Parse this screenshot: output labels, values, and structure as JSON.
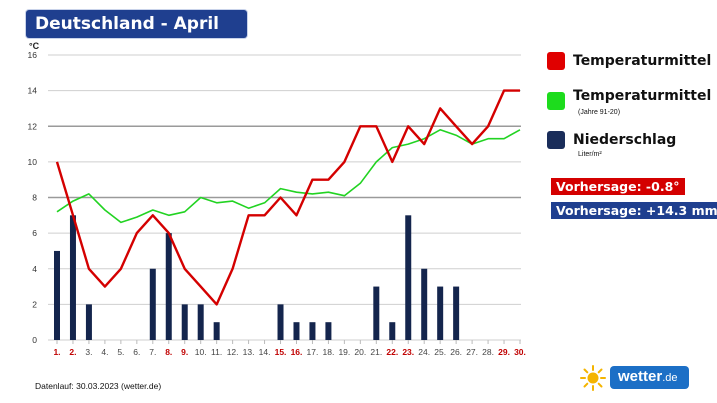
{
  "title": "Deutschland - April",
  "unit_label": "°C",
  "legend": [
    {
      "label": "Temperaturmittel",
      "sub": "",
      "color": "#e00000"
    },
    {
      "label": "Temperaturmittel",
      "sub": "(Jahre 91-20)",
      "color": "#1ddc1d"
    },
    {
      "label": "Niederschlag",
      "sub": "Liter/m²",
      "color": "#1a2d5a"
    }
  ],
  "forecast": {
    "temp": {
      "text": "Vorhersage: -0.8°",
      "color": "#d40000"
    },
    "precip": {
      "text": "Vorhersage: +14.3 mm",
      "color": "#1f3f8f"
    }
  },
  "footer": "Datenlauf: 30.03.2023 (wetter.de)",
  "logo": {
    "name": "wetter",
    "tld": ".de"
  },
  "chart_data": {
    "type": "line",
    "ylim": [
      0,
      16
    ],
    "yticks": [
      0,
      2,
      4,
      6,
      8,
      10,
      12,
      14,
      16
    ],
    "categories": [
      "1.",
      "2.",
      "3.",
      "4.",
      "5.",
      "6.",
      "7.",
      "8.",
      "9.",
      "10.",
      "11.",
      "12.",
      "13.",
      "14.",
      "15.",
      "16.",
      "17.",
      "18.",
      "19.",
      "20.",
      "21.",
      "22.",
      "23.",
      "24.",
      "25.",
      "26.",
      "27.",
      "28.",
      "29.",
      "30."
    ],
    "highlight_categories": [
      "1.",
      "2.",
      "8.",
      "9.",
      "15.",
      "16.",
      "22.",
      "23.",
      "29.",
      "30."
    ],
    "series": [
      {
        "name": "Temperaturmittel",
        "type": "line",
        "color": "#d40000",
        "values": [
          10,
          7,
          4,
          3,
          4,
          6,
          7,
          6,
          4,
          3,
          2,
          4,
          7,
          7,
          8,
          7,
          9,
          9,
          10,
          12,
          12,
          10,
          12,
          11,
          13,
          12,
          11,
          12,
          14,
          14
        ]
      },
      {
        "name": "Temperaturmittel (Jahre 91-20)",
        "type": "line",
        "color": "#22d322",
        "values": [
          7.2,
          7.8,
          8.2,
          7.3,
          6.6,
          6.9,
          7.3,
          7.0,
          7.2,
          8.0,
          7.7,
          7.8,
          7.4,
          7.7,
          8.5,
          8.3,
          8.2,
          8.3,
          8.1,
          8.8,
          10.0,
          10.8,
          11.0,
          11.3,
          11.8,
          11.5,
          11.0,
          11.3,
          11.3,
          11.8
        ]
      },
      {
        "name": "Niederschlag",
        "type": "bar",
        "color": "#14254d",
        "values": [
          5,
          7,
          2,
          0,
          0,
          0,
          4,
          6,
          2,
          2,
          1,
          0,
          0,
          0,
          2,
          1,
          1,
          1,
          0,
          0,
          3,
          1,
          7,
          4,
          3,
          3,
          0,
          0,
          0,
          0
        ]
      }
    ]
  }
}
